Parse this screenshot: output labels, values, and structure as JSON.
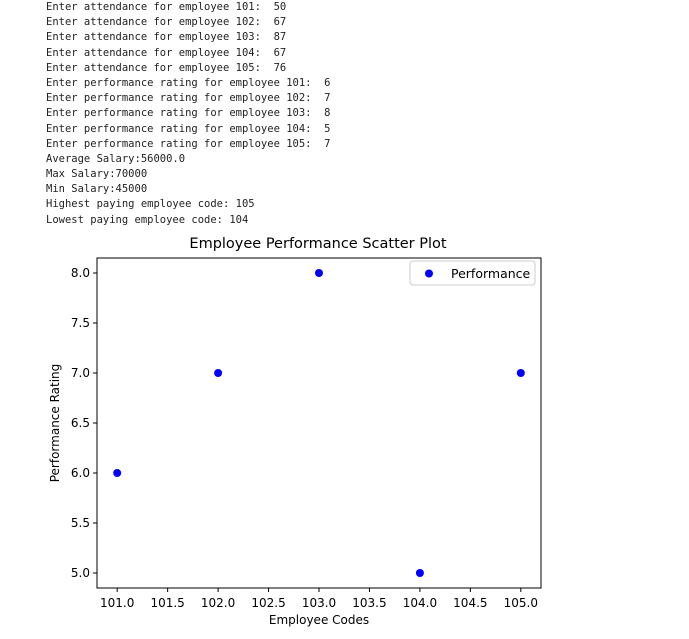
{
  "console": {
    "lines": [
      "Enter attendance for employee 101:  50",
      "Enter attendance for employee 102:  67",
      "Enter attendance for employee 103:  87",
      "Enter attendance for employee 104:  67",
      "Enter attendance for employee 105:  76",
      "Enter performance rating for employee 101:  6",
      "Enter performance rating for employee 102:  7",
      "Enter performance rating for employee 103:  8",
      "Enter performance rating for employee 104:  5",
      "Enter performance rating for employee 105:  7",
      "Average Salary:56000.0",
      "Max Salary:70000",
      "Min Salary:45000",
      "Highest paying employee code: 105",
      "Lowest paying employee code: 104"
    ]
  },
  "colors": {
    "marker": "#0000ff",
    "axis": "#000000"
  },
  "chart_data": {
    "type": "scatter",
    "title": "Employee Performance Scatter Plot",
    "xlabel": "Employee Codes",
    "ylabel": "Performance Rating",
    "series": [
      {
        "name": "Performance",
        "x": [
          101,
          102,
          103,
          104,
          105
        ],
        "y": [
          6,
          7,
          8,
          5,
          7
        ]
      }
    ],
    "xlim": [
      100.8,
      105.2
    ],
    "ylim": [
      4.85,
      8.15
    ],
    "xticks": [
      101.0,
      101.5,
      102.0,
      102.5,
      103.0,
      103.5,
      104.0,
      104.5,
      105.0
    ],
    "xtick_labels": [
      "101.0",
      "101.5",
      "102.0",
      "102.5",
      "103.0",
      "103.5",
      "104.0",
      "104.5",
      "105.0"
    ],
    "yticks": [
      5.0,
      5.5,
      6.0,
      6.5,
      7.0,
      7.5,
      8.0
    ],
    "ytick_labels": [
      "5.0",
      "5.5",
      "6.0",
      "6.5",
      "7.0",
      "7.5",
      "8.0"
    ],
    "grid": false,
    "legend": "top-right"
  }
}
